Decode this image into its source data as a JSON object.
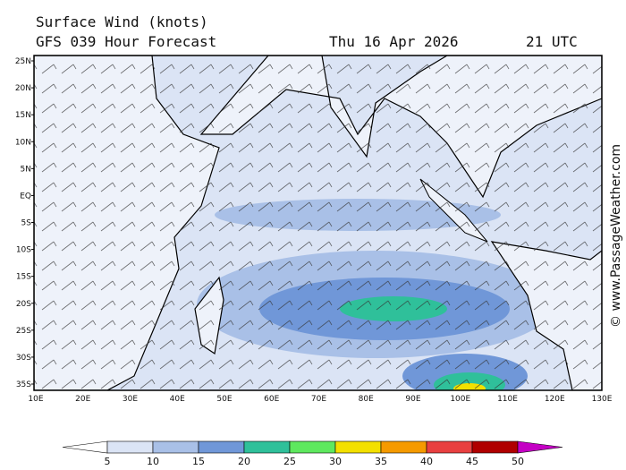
{
  "header": {
    "title": "Surface Wind (knots)",
    "forecast": "GFS 039 Hour Forecast",
    "date": "Thu 16 Apr 2026",
    "time": "21 UTC"
  },
  "credit": "© www.PassageWeather.com",
  "latitude_labels": [
    "25N",
    "20N",
    "15N",
    "10N",
    "5N",
    "EQ",
    "5S",
    "10S",
    "15S",
    "20S",
    "25S",
    "30S",
    "35S"
  ],
  "longitude_labels": [
    "10E",
    "20E",
    "30E",
    "40E",
    "50E",
    "60E",
    "70E",
    "80E",
    "90E",
    "100E",
    "110E",
    "120E",
    "130E"
  ],
  "colorbar": {
    "ticks": [
      5,
      10,
      15,
      20,
      25,
      30,
      35,
      40,
      45,
      50
    ],
    "colors": [
      "#ffffff",
      "#dbe4f5",
      "#a9c0e7",
      "#7097d8",
      "#2fc09a",
      "#5ee85e",
      "#f3e000",
      "#f59a00",
      "#e84040",
      "#b00000",
      "#c400c4"
    ]
  }
}
